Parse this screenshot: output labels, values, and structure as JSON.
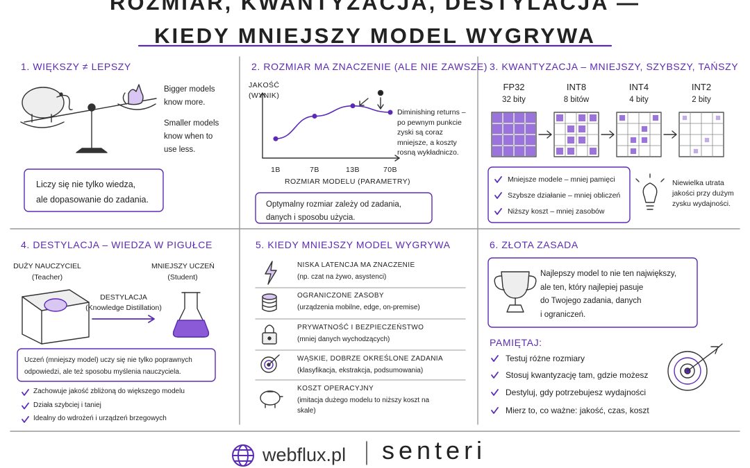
{
  "header": {
    "title_lines": [
      "ROZMIAR, KWANTYZACJA, DESTYLACJA —",
      "KIEDY MNIEJSZY MODEL WYGRYWA"
    ]
  },
  "section1": {
    "title": "1. WIĘKSZY ≠ LEPSZY",
    "text1": [
      "Bigger models",
      "know more."
    ],
    "text2": [
      "Smaller models",
      "know when to",
      "use less."
    ],
    "note": [
      "Liczy się nie tylko wiedza,",
      "ale dopasowanie do zadania."
    ]
  },
  "section2": {
    "title": "2. ROZMIAR MA ZNACZENIE (ALE NIE ZAWSZE)",
    "chart": {
      "type": "line",
      "y_label": [
        "JAKOŚĆ",
        "(WYNIK)"
      ],
      "x_label": "ROZMIAR MODELU (PARAMETRY)",
      "categories": [
        "1B",
        "7B",
        "13B",
        "70B"
      ],
      "values": [
        30,
        65,
        81,
        71
      ],
      "ylim": [
        0,
        100
      ],
      "color": "#5b2bb5"
    },
    "annotation": [
      "Diminishing returns –",
      "po pewnym punkcie",
      "zyski są coraz",
      "mniejsze, a koszty",
      "rosną wykładniczo."
    ],
    "note": [
      "Optymalny rozmiar zależy od zadania,",
      "danych i sposobu użycia."
    ]
  },
  "section3": {
    "title": "3. KWANTYZACJA – MNIEJSZY, SZYBSZY, TAŃSZY",
    "formats": [
      {
        "name": "FP32",
        "bits": "32 bity"
      },
      {
        "name": "INT8",
        "bits": "8 bitów"
      },
      {
        "name": "INT4",
        "bits": "4 bity"
      },
      {
        "name": "INT2",
        "bits": "2 bity"
      }
    ],
    "benefits": [
      "Mniejsze modele – mniej pamięci",
      "Szybsze działanie – mniej obliczeń",
      "Niższy koszt – mniej zasobów"
    ],
    "side_note": [
      "Niewielka utrata",
      "jakości przy dużym",
      "zysku wydajności."
    ]
  },
  "section4": {
    "title": "4. DESTYLACJA – WIEDZA W PIGUŁCE",
    "teacher": [
      "DUŻY NAUCZYCIEL",
      "(Teacher)"
    ],
    "student": [
      "MNIEJSZY UCZEŃ",
      "(Student)"
    ],
    "process": [
      "DESTYLACJA",
      "(Knowledge Distillation)"
    ],
    "note": [
      "Uczeń (mniejszy model) uczy się nie tylko poprawnych",
      "odpowiedzi, ale też sposobu myślenia nauczyciela."
    ],
    "bullets": [
      "Zachowuje jakość zbliżoną do większego modelu",
      "Działa szybciej i taniej",
      "Idealny do wdrożeń i urządzeń brzegowych"
    ]
  },
  "section5": {
    "title": "5. KIEDY MNIEJSZY MODEL WYGRYWA",
    "items": [
      {
        "title": "NISKA LATENCJA MA ZNACZENIE",
        "desc": [
          "(np. czat na żywo, asystenci)"
        ]
      },
      {
        "title": "OGRANICZONE ZASOBY",
        "desc": [
          "(urządzenia mobilne, edge, on-premise)"
        ]
      },
      {
        "title": "PRYWATNOŚĆ I BEZPIECZEŃSTWO",
        "desc": [
          "(mniej danych wychodzących)"
        ]
      },
      {
        "title": "WĄSKIE, DOBRZE OKREŚLONE ZADANIA",
        "desc": [
          "(klasyfikacja, ekstrakcja, podsumowania)"
        ]
      },
      {
        "title": "KOSZT OPERACYJNY",
        "desc": [
          "(imitacja dużego modelu to niższy koszt na",
          "skale)"
        ]
      }
    ]
  },
  "section6": {
    "title": "6. ZŁOTA ZASADA",
    "quote": [
      "Najlepszy model to nie ten największy,",
      "ale ten, który najlepiej pasuje",
      "do Twojego zadania, danych",
      "i ograniczeń."
    ],
    "remember_title": "PAMIĘTAJ:",
    "bullets": [
      "Testuj różne rozmiary",
      "Stosuj kwantyzację tam, gdzie możesz",
      "Destyluj, gdy potrzebujesz wydajności",
      "Mierz to, co ważne: jakość, czas, koszt"
    ]
  },
  "footer": {
    "brand1": "webflux.pl",
    "brand2": "senteri"
  }
}
